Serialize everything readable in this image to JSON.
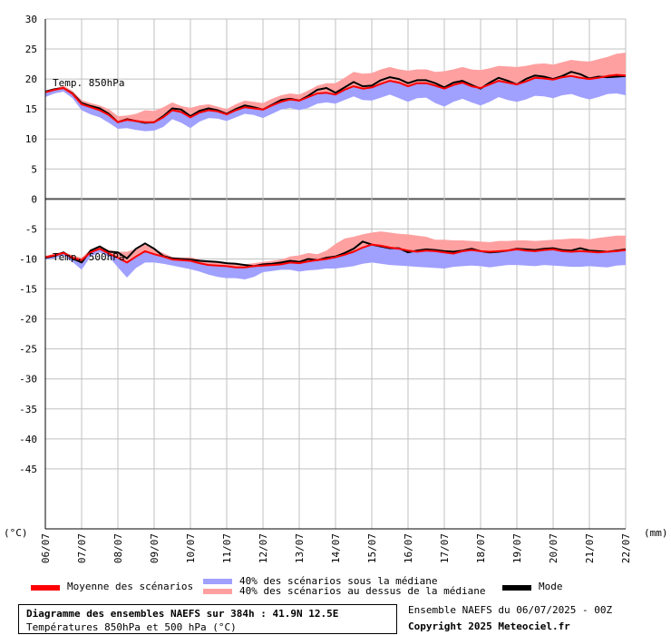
{
  "chart_data": {
    "type": "area",
    "ylim": [
      -55,
      30
    ],
    "y_ticks": [
      30,
      25,
      20,
      15,
      10,
      5,
      0,
      -5,
      -10,
      -15,
      -20,
      -25,
      -30,
      -35,
      -40,
      -45
    ],
    "y_unit": "(°C)",
    "x_unit": "(mm)",
    "x_ticks": [
      "06/07",
      "07/07",
      "08/07",
      "09/07",
      "10/07",
      "11/07",
      "12/07",
      "13/07",
      "14/07",
      "15/07",
      "16/07",
      "17/07",
      "18/07",
      "19/07",
      "20/07",
      "21/07",
      "22/07"
    ],
    "grid": true,
    "x": [
      6.0,
      6.25,
      6.5,
      6.75,
      7.0,
      7.25,
      7.5,
      7.75,
      8.0,
      8.25,
      8.5,
      8.75,
      9.0,
      9.25,
      9.5,
      9.75,
      10.0,
      10.25,
      10.5,
      10.75,
      11.0,
      11.25,
      11.5,
      11.75,
      12.0,
      12.25,
      12.5,
      12.75,
      13.0,
      13.25,
      13.5,
      13.75,
      14.0,
      14.25,
      14.5,
      14.75,
      15.0,
      15.25,
      15.5,
      15.75,
      16.0,
      16.25,
      16.5,
      16.75,
      17.0,
      17.25,
      17.5,
      17.75,
      18.0,
      18.25,
      18.5,
      18.75,
      19.0,
      19.25,
      19.5,
      19.75,
      20.0,
      20.25,
      20.5,
      20.75,
      21.0,
      21.25,
      21.5,
      21.75,
      22.0
    ],
    "series": [
      {
        "name": "Temp. 850hPa",
        "mean": [
          17.8,
          18.2,
          18.5,
          17.5,
          15.8,
          15.3,
          14.8,
          14.0,
          12.8,
          13.2,
          13.0,
          12.8,
          12.8,
          13.6,
          14.8,
          14.5,
          13.6,
          14.4,
          14.8,
          14.6,
          14.1,
          14.8,
          15.3,
          15.1,
          14.9,
          15.6,
          16.2,
          16.6,
          16.4,
          17.0,
          17.6,
          17.7,
          17.4,
          18.2,
          18.8,
          18.4,
          18.6,
          19.2,
          19.7,
          19.4,
          18.8,
          19.3,
          19.3,
          18.9,
          18.4,
          19.0,
          19.4,
          18.8,
          18.5,
          19.1,
          19.7,
          19.4,
          19.1,
          19.6,
          20.2,
          20.1,
          19.9,
          20.3,
          20.5,
          20.2,
          20.0,
          20.2,
          20.5,
          20.7,
          20.6
        ],
        "mode": [
          17.9,
          18.3,
          18.5,
          17.6,
          16.0,
          15.5,
          15.1,
          14.2,
          12.8,
          13.3,
          13.0,
          12.7,
          12.8,
          13.8,
          15.1,
          14.9,
          13.8,
          14.7,
          15.1,
          14.8,
          14.2,
          15.0,
          15.6,
          15.3,
          14.9,
          15.7,
          16.5,
          16.7,
          16.4,
          17.2,
          18.2,
          18.5,
          17.7,
          18.6,
          19.5,
          18.8,
          18.9,
          19.8,
          20.3,
          20.0,
          19.3,
          19.8,
          19.8,
          19.3,
          18.6,
          19.4,
          19.7,
          19.0,
          18.4,
          19.4,
          20.2,
          19.7,
          19.1,
          20.0,
          20.6,
          20.4,
          20.0,
          20.5,
          21.2,
          20.8,
          20.1,
          20.4,
          20.3,
          20.4,
          20.5
        ],
        "upper": [
          18.0,
          18.4,
          18.9,
          18.0,
          16.5,
          16.0,
          15.6,
          15.0,
          13.8,
          13.9,
          14.2,
          14.8,
          14.7,
          15.3,
          16.1,
          15.5,
          15.2,
          15.6,
          15.8,
          15.4,
          15.0,
          15.8,
          16.4,
          16.2,
          16.0,
          16.7,
          17.3,
          17.6,
          17.4,
          18.1,
          18.9,
          19.3,
          19.3,
          20.2,
          21.2,
          20.9,
          21.0,
          21.6,
          22.0,
          21.6,
          21.4,
          21.6,
          21.6,
          21.2,
          21.3,
          21.6,
          22.0,
          21.6,
          21.5,
          21.8,
          22.2,
          22.1,
          22.0,
          22.2,
          22.5,
          22.6,
          22.4,
          22.8,
          23.2,
          23.0,
          22.9,
          23.3,
          23.7,
          24.2,
          24.4
        ],
        "lower": [
          17.0,
          17.6,
          17.9,
          16.8,
          14.8,
          14.1,
          13.6,
          12.7,
          11.7,
          11.8,
          11.5,
          11.3,
          11.4,
          12.0,
          13.3,
          12.7,
          11.8,
          12.9,
          13.5,
          13.4,
          13.0,
          13.6,
          14.2,
          14.0,
          13.5,
          14.2,
          14.9,
          15.2,
          14.8,
          15.2,
          15.9,
          16.1,
          15.9,
          16.5,
          17.1,
          16.5,
          16.4,
          16.9,
          17.4,
          16.8,
          16.2,
          16.8,
          16.9,
          16.0,
          15.4,
          16.2,
          16.7,
          16.1,
          15.6,
          16.2,
          17.0,
          16.5,
          16.2,
          16.6,
          17.2,
          17.1,
          16.8,
          17.3,
          17.5,
          17.0,
          16.6,
          17.0,
          17.5,
          17.6,
          17.3
        ]
      },
      {
        "name": "Temp. 500hPa",
        "mean": [
          -9.7,
          -9.4,
          -9.0,
          -9.8,
          -10.2,
          -8.9,
          -8.3,
          -9.1,
          -9.8,
          -10.6,
          -9.6,
          -8.7,
          -9.2,
          -9.6,
          -10.1,
          -10.2,
          -10.3,
          -10.7,
          -11.0,
          -11.1,
          -11.2,
          -11.4,
          -11.4,
          -11.2,
          -11.1,
          -11.0,
          -10.9,
          -10.6,
          -10.7,
          -10.4,
          -10.2,
          -10.0,
          -9.7,
          -9.3,
          -8.8,
          -8.1,
          -7.6,
          -7.8,
          -8.1,
          -8.3,
          -8.6,
          -8.8,
          -8.6,
          -8.7,
          -8.9,
          -9.1,
          -8.7,
          -8.5,
          -8.7,
          -8.8,
          -8.7,
          -8.6,
          -8.4,
          -8.6,
          -8.7,
          -8.5,
          -8.4,
          -8.7,
          -8.8,
          -8.7,
          -8.8,
          -8.9,
          -8.8,
          -8.7,
          -8.5
        ],
        "mode": [
          -9.8,
          -9.5,
          -8.9,
          -9.9,
          -10.6,
          -8.6,
          -7.9,
          -8.8,
          -8.9,
          -9.9,
          -8.3,
          -7.4,
          -8.3,
          -9.5,
          -9.9,
          -10.0,
          -10.1,
          -10.3,
          -10.4,
          -10.5,
          -10.7,
          -10.8,
          -11.0,
          -11.2,
          -10.9,
          -10.8,
          -10.6,
          -10.3,
          -10.5,
          -10.0,
          -10.2,
          -9.8,
          -9.6,
          -9.0,
          -8.3,
          -7.1,
          -7.6,
          -7.9,
          -8.2,
          -8.2,
          -8.9,
          -8.6,
          -8.4,
          -8.5,
          -8.7,
          -8.8,
          -8.6,
          -8.3,
          -8.7,
          -8.9,
          -8.8,
          -8.6,
          -8.3,
          -8.4,
          -8.5,
          -8.3,
          -8.2,
          -8.5,
          -8.6,
          -8.2,
          -8.6,
          -8.7,
          -8.8,
          -8.6,
          -8.4
        ],
        "upper": [
          -9.5,
          -9.1,
          -8.8,
          -9.4,
          -9.8,
          -8.4,
          -7.9,
          -8.5,
          -8.8,
          -8.8,
          -8.3,
          -7.6,
          -8.4,
          -9.0,
          -9.7,
          -9.8,
          -9.7,
          -10.1,
          -10.4,
          -10.6,
          -10.7,
          -10.9,
          -10.9,
          -10.7,
          -10.5,
          -10.3,
          -10.1,
          -9.6,
          -9.4,
          -9.0,
          -9.2,
          -8.6,
          -7.5,
          -6.6,
          -6.3,
          -5.9,
          -5.6,
          -5.4,
          -5.6,
          -5.8,
          -5.9,
          -6.1,
          -6.3,
          -6.8,
          -6.8,
          -6.9,
          -6.9,
          -7.0,
          -7.1,
          -7.2,
          -7.0,
          -7.0,
          -6.9,
          -6.9,
          -7.0,
          -6.9,
          -6.8,
          -6.7,
          -6.6,
          -6.6,
          -6.7,
          -6.5,
          -6.3,
          -6.1,
          -6.1
        ],
        "lower": [
          -10.1,
          -9.9,
          -9.4,
          -10.5,
          -11.8,
          -9.6,
          -8.9,
          -9.6,
          -11.4,
          -13.1,
          -11.5,
          -10.6,
          -10.6,
          -10.8,
          -11.1,
          -11.4,
          -11.7,
          -12.1,
          -12.6,
          -13.0,
          -13.2,
          -13.2,
          -13.4,
          -13.0,
          -12.2,
          -12.0,
          -11.8,
          -11.8,
          -12.1,
          -11.9,
          -11.8,
          -11.6,
          -11.6,
          -11.4,
          -11.2,
          -10.8,
          -10.6,
          -10.8,
          -11.0,
          -11.1,
          -11.2,
          -11.3,
          -11.4,
          -11.5,
          -11.6,
          -11.3,
          -11.2,
          -11.1,
          -11.2,
          -11.4,
          -11.2,
          -11.0,
          -11.0,
          -11.1,
          -11.2,
          -11.0,
          -11.1,
          -11.2,
          -11.3,
          -11.3,
          -11.2,
          -11.3,
          -11.4,
          -11.1,
          -11.0
        ]
      }
    ],
    "colors": {
      "mean": "#ff0000",
      "mode": "#000000",
      "below_median": "#a0a0ff",
      "above_median": "#ffa0a0",
      "grid": "#c0c0c0",
      "zero_line": "#555555"
    }
  },
  "legend": {
    "mean_label": "Moyenne des scénarios",
    "below_label": "40% des scénarios sous la médiane",
    "above_label": "40% des scénarios au dessus de la médiane",
    "mode_label": "Mode"
  },
  "footer": {
    "title": "Diagramme des ensembles NAEFS sur 384h : 41.9N 12.5E",
    "subtitle": "Températures 850hPa et 500 hPa (°C)",
    "run_info": "Ensemble NAEFS du 06/07/2025 - 00Z",
    "copyright": "Copyright 2025 Meteociel.fr"
  }
}
